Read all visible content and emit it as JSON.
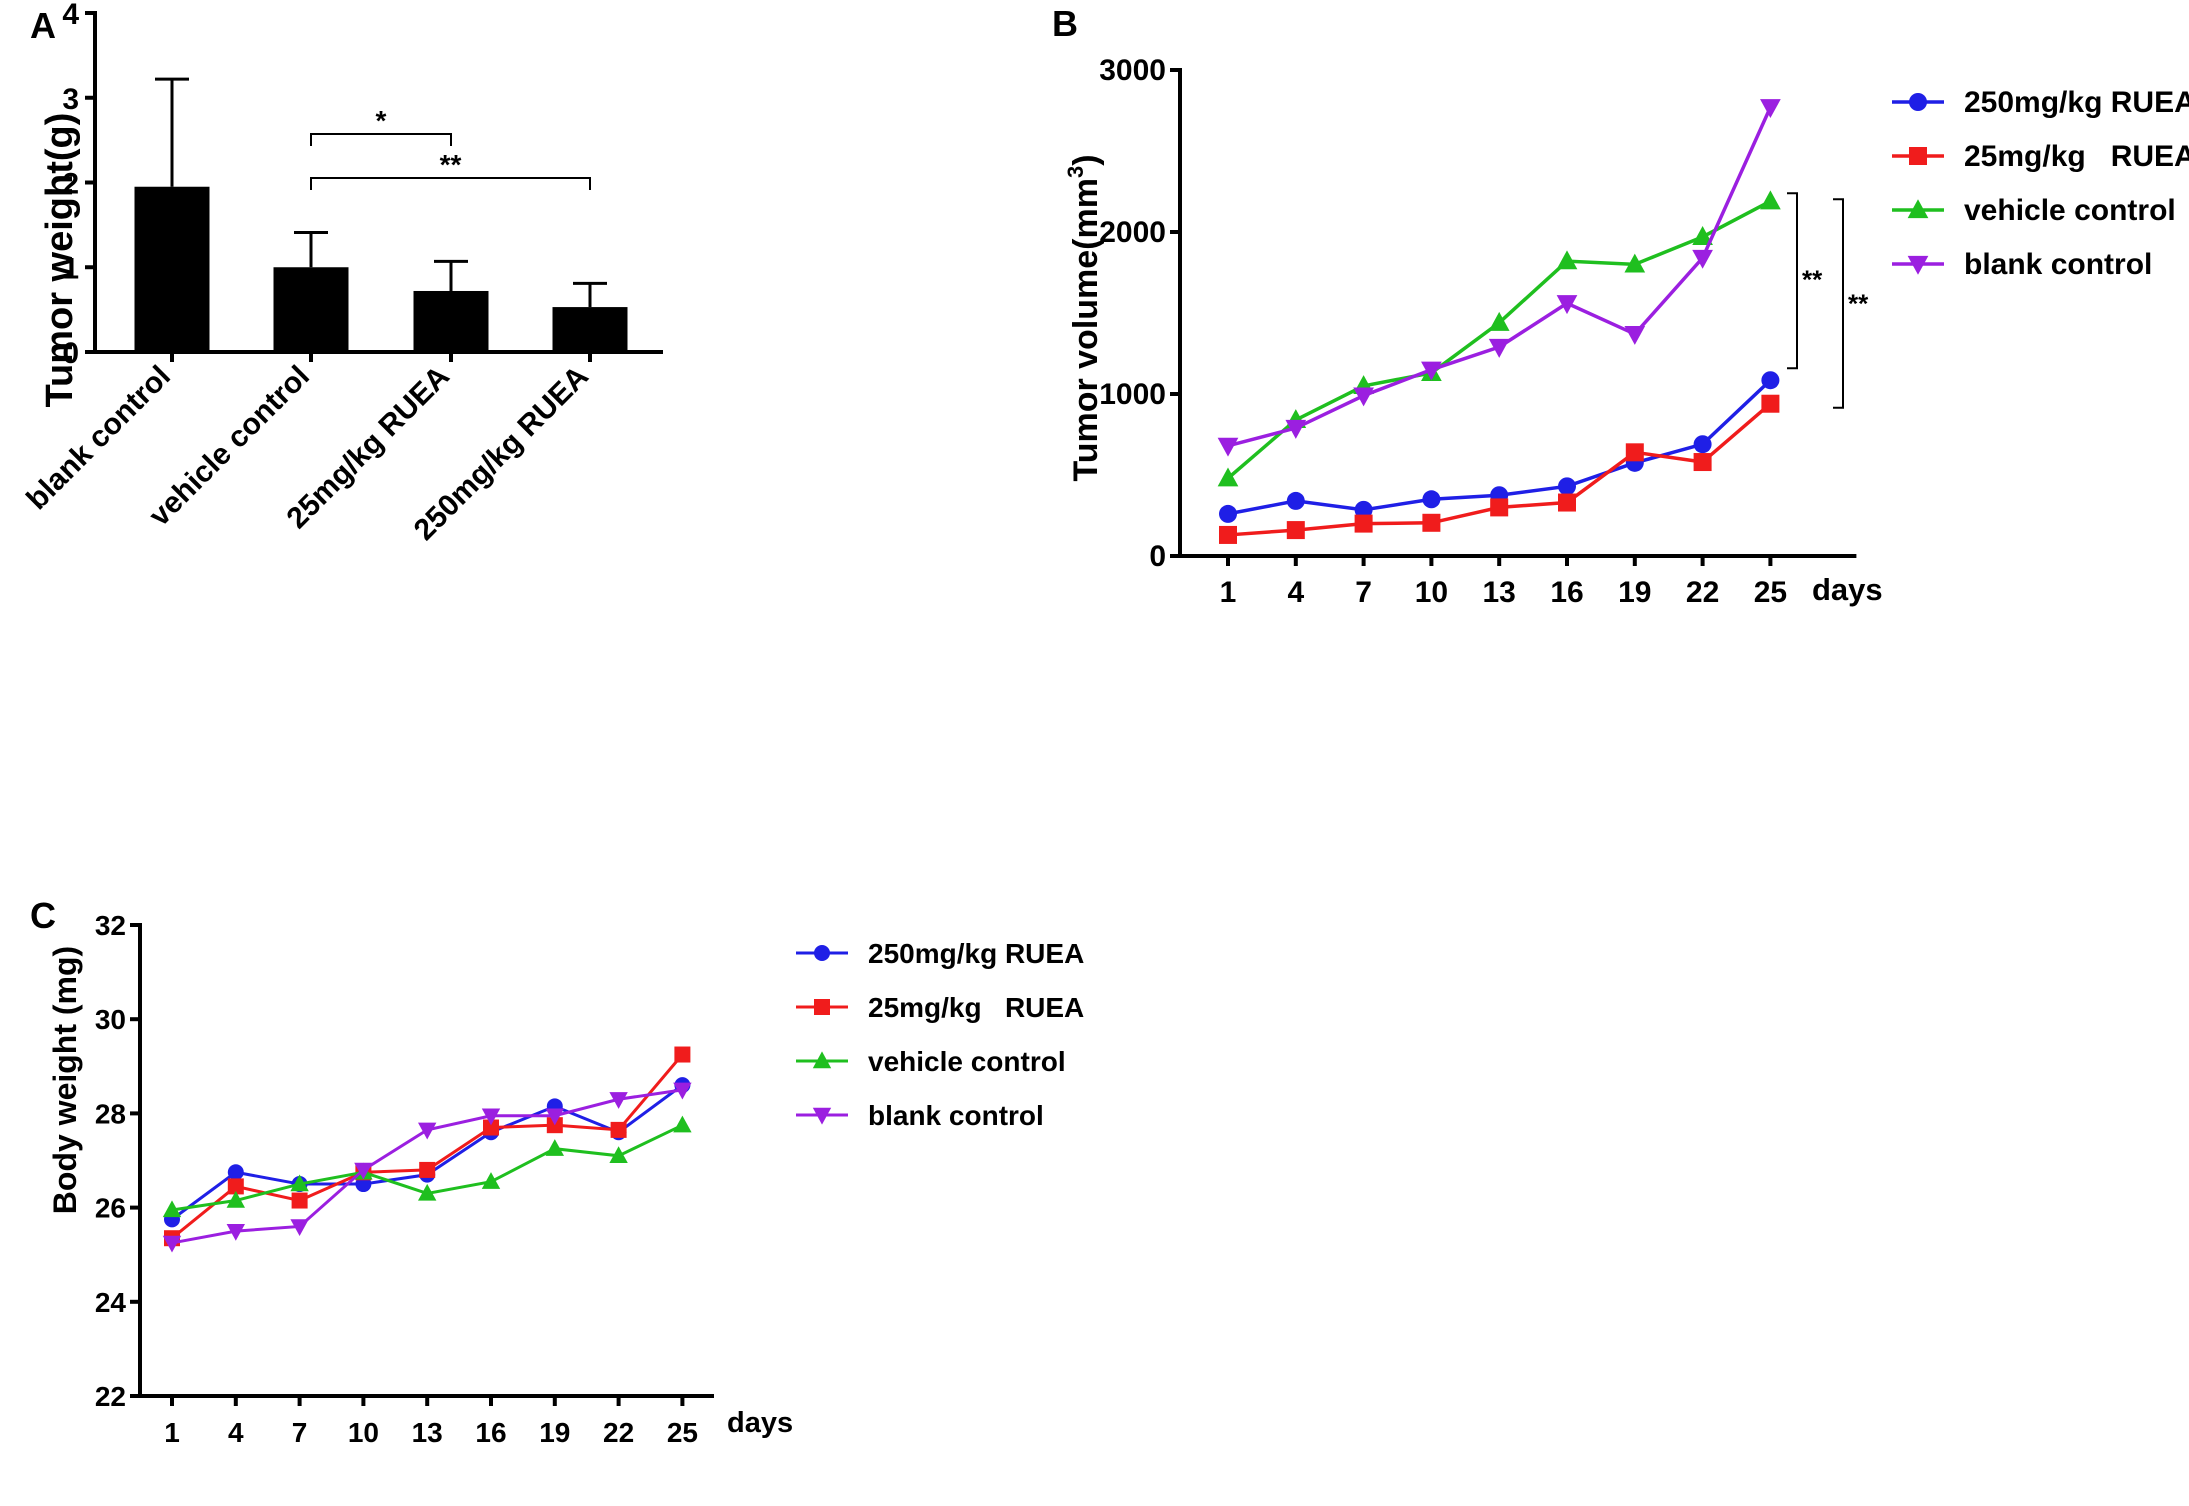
{
  "chart_data": [
    {
      "panel": "A",
      "type": "bar",
      "title": "",
      "xlabel": "",
      "ylabel": "Tumor weight(g)",
      "ylim": [
        0,
        4
      ],
      "yticks": [
        "0",
        "1",
        "2",
        "3",
        "4"
      ],
      "categories": [
        "blank control",
        "vehicle control",
        "25mg/kg RUEA",
        "250mg/kg RUEA"
      ],
      "values": [
        1.95,
        1.0,
        0.72,
        0.53
      ],
      "errors": [
        1.27,
        0.41,
        0.35,
        0.28
      ],
      "color": "#000000",
      "annotations": [
        {
          "from": "vehicle control",
          "to": "25mg/kg RUEA",
          "label": "*"
        },
        {
          "from": "vehicle control",
          "to": "250mg/kg RUEA",
          "label": "**"
        }
      ]
    },
    {
      "panel": "B",
      "type": "line",
      "xlabel": "days",
      "ylabel": "Tumor volume(mm",
      "ylabel_sup": "3",
      "ylabel_end": ")",
      "ylim": [
        0,
        3000
      ],
      "yticks": [
        "0",
        "1000",
        "2000",
        "3000"
      ],
      "x": [
        "1",
        "4",
        "7",
        "10",
        "13",
        "16",
        "19",
        "22",
        "25"
      ],
      "legend_position": "right",
      "series": [
        {
          "name": "250mg/kg RUEA",
          "marker": "circle",
          "color": "#1f1fe6",
          "values": [
            260,
            340,
            285,
            350,
            375,
            430,
            575,
            690,
            1085
          ]
        },
        {
          "name": "25mg/kg   RUEA",
          "marker": "square",
          "color": "#f01c1c",
          "values": [
            130,
            160,
            200,
            205,
            300,
            330,
            640,
            580,
            940
          ]
        },
        {
          "name": "vehicle control",
          "marker": "triangle-up",
          "color": "#1fbf1f",
          "values": [
            480,
            840,
            1050,
            1130,
            1440,
            1820,
            1800,
            1970,
            2190
          ]
        },
        {
          "name": "blank control",
          "marker": "triangle-down",
          "color": "#9b1fe0",
          "values": [
            680,
            790,
            990,
            1150,
            1290,
            1560,
            1370,
            1840,
            2770
          ]
        }
      ],
      "annotations": [
        {
          "label": "**",
          "between": [
            "vehicle control",
            "250mg/kg RUEA"
          ]
        },
        {
          "label": "**",
          "between": [
            "vehicle control",
            "25mg/kg   RUEA"
          ]
        }
      ]
    },
    {
      "panel": "C",
      "type": "line",
      "xlabel": "days",
      "ylabel": "Body weight (mg)",
      "ylim": [
        22,
        32
      ],
      "yticks": [
        "22",
        "24",
        "26",
        "28",
        "30",
        "32"
      ],
      "x": [
        "1",
        "4",
        "7",
        "10",
        "13",
        "16",
        "19",
        "22",
        "25"
      ],
      "legend_position": "right",
      "series": [
        {
          "name": "250mg/kg RUEA",
          "marker": "circle",
          "color": "#1f1fe6",
          "values": [
            25.75,
            26.75,
            26.5,
            26.5,
            26.7,
            27.6,
            28.15,
            27.6,
            28.6
          ]
        },
        {
          "name": "25mg/kg   RUEA",
          "marker": "square",
          "color": "#f01c1c",
          "values": [
            25.35,
            26.45,
            26.15,
            26.75,
            26.8,
            27.7,
            27.75,
            27.65,
            29.25
          ]
        },
        {
          "name": "vehicle control",
          "marker": "triangle-up",
          "color": "#1fbf1f",
          "values": [
            25.95,
            26.15,
            26.5,
            26.75,
            26.3,
            26.55,
            27.25,
            27.1,
            27.75
          ]
        },
        {
          "name": "blank control",
          "marker": "triangle-down",
          "color": "#9b1fe0",
          "values": [
            25.25,
            25.5,
            25.6,
            26.8,
            27.65,
            27.95,
            27.95,
            28.3,
            28.5
          ]
        }
      ]
    }
  ],
  "panel_letters": [
    "A",
    "B",
    "C"
  ]
}
